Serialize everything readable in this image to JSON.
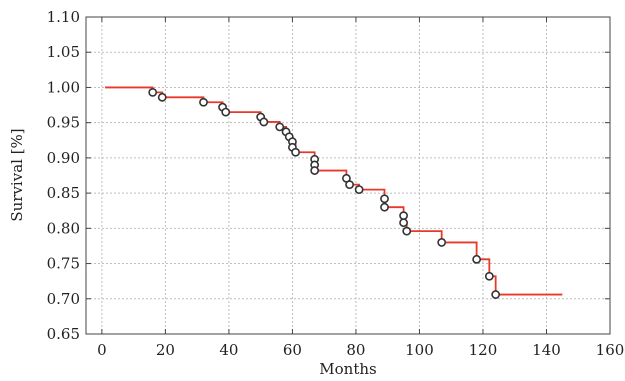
{
  "chart_data": {
    "type": "line",
    "title": "",
    "xlabel": "Months",
    "ylabel": "Survival [%]",
    "xlim": [
      -5,
      160
    ],
    "ylim": [
      0.65,
      1.1
    ],
    "xticks": [
      0,
      20,
      40,
      60,
      80,
      100,
      120,
      140,
      160
    ],
    "xtick_labels": [
      "0",
      "20",
      "40",
      "60",
      "80",
      "100",
      "120",
      "140",
      "160"
    ],
    "yticks": [
      0.65,
      0.7,
      0.75,
      0.8,
      0.85,
      0.9,
      0.95,
      1.0,
      1.05,
      1.1
    ],
    "ytick_labels": [
      "0.65",
      "0.70",
      "0.75",
      "0.80",
      "0.85",
      "0.90",
      "0.95",
      "1.00",
      "1.05",
      "1.10"
    ],
    "grid": true,
    "series": [
      {
        "kind": "step",
        "color": "#e8382b",
        "points": [
          [
            1,
            1.0
          ],
          [
            16,
            1.0
          ],
          [
            16,
            0.993
          ],
          [
            19,
            0.993
          ],
          [
            19,
            0.986
          ],
          [
            32,
            0.986
          ],
          [
            32,
            0.979
          ],
          [
            38,
            0.979
          ],
          [
            38,
            0.972
          ],
          [
            39,
            0.972
          ],
          [
            39,
            0.965
          ],
          [
            50,
            0.965
          ],
          [
            50,
            0.958
          ],
          [
            51,
            0.958
          ],
          [
            51,
            0.951
          ],
          [
            56,
            0.951
          ],
          [
            56,
            0.944
          ],
          [
            58,
            0.944
          ],
          [
            58,
            0.937
          ],
          [
            59,
            0.937
          ],
          [
            59,
            0.93
          ],
          [
            60,
            0.93
          ],
          [
            60,
            0.923
          ],
          [
            61,
            0.923
          ],
          [
            61,
            0.908
          ],
          [
            67,
            0.908
          ],
          [
            67,
            0.895
          ],
          [
            67,
            0.882
          ],
          [
            77,
            0.882
          ],
          [
            77,
            0.871
          ],
          [
            78,
            0.871
          ],
          [
            78,
            0.862
          ],
          [
            81,
            0.862
          ],
          [
            81,
            0.855
          ],
          [
            89,
            0.855
          ],
          [
            89,
            0.84
          ],
          [
            89,
            0.83
          ],
          [
            95,
            0.83
          ],
          [
            95,
            0.818
          ],
          [
            95,
            0.808
          ],
          [
            96,
            0.808
          ],
          [
            96,
            0.796
          ],
          [
            107,
            0.796
          ],
          [
            107,
            0.78
          ],
          [
            118,
            0.78
          ],
          [
            118,
            0.756
          ],
          [
            122,
            0.756
          ],
          [
            122,
            0.732
          ],
          [
            124,
            0.732
          ],
          [
            124,
            0.706
          ],
          [
            145,
            0.706
          ]
        ]
      },
      {
        "kind": "markers",
        "marker": "circle",
        "color": "#333333",
        "points": [
          [
            16,
            0.993
          ],
          [
            19,
            0.986
          ],
          [
            32,
            0.979
          ],
          [
            38,
            0.972
          ],
          [
            39,
            0.965
          ],
          [
            50,
            0.958
          ],
          [
            51,
            0.951
          ],
          [
            56,
            0.944
          ],
          [
            58,
            0.937
          ],
          [
            59,
            0.93
          ],
          [
            60,
            0.923
          ],
          [
            60,
            0.915
          ],
          [
            61,
            0.908
          ],
          [
            67,
            0.898
          ],
          [
            67,
            0.89
          ],
          [
            67,
            0.882
          ],
          [
            77,
            0.871
          ],
          [
            78,
            0.862
          ],
          [
            81,
            0.855
          ],
          [
            89,
            0.842
          ],
          [
            89,
            0.83
          ],
          [
            95,
            0.818
          ],
          [
            95,
            0.808
          ],
          [
            96,
            0.796
          ],
          [
            107,
            0.78
          ],
          [
            118,
            0.756
          ],
          [
            122,
            0.732
          ],
          [
            124,
            0.706
          ]
        ]
      }
    ]
  }
}
